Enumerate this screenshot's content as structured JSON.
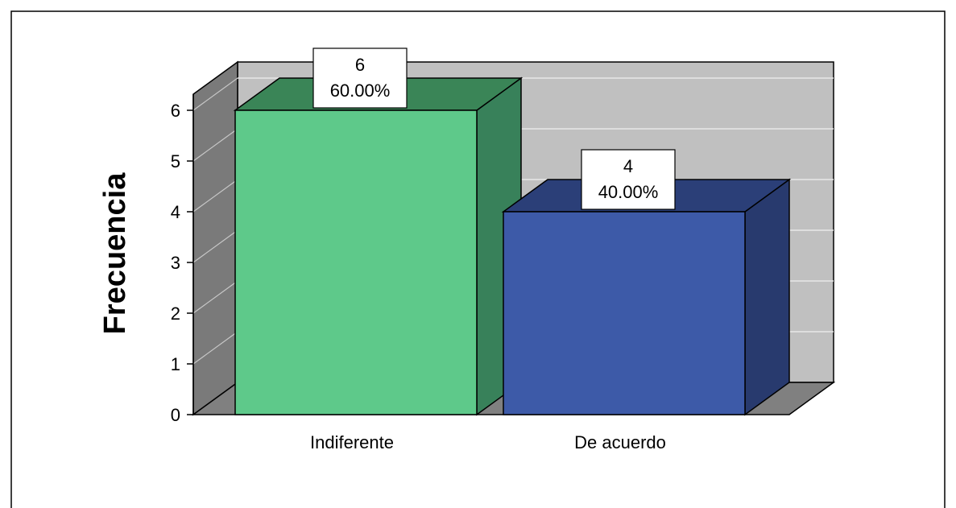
{
  "chart_data": {
    "type": "bar",
    "style": "3d",
    "categories": [
      "Indiferente",
      "De acuerdo"
    ],
    "values": [
      6,
      4
    ],
    "percent_labels": [
      "60.00%",
      "40.00%"
    ],
    "value_labels": [
      "6",
      "4"
    ],
    "title": "",
    "xlabel": "",
    "ylabel": "Frecuencia",
    "ylim": [
      0,
      6
    ],
    "yticks": [
      "0",
      "1",
      "2",
      "3",
      "4",
      "5",
      "6"
    ],
    "grid": true,
    "legend": "none",
    "colors": {
      "bars": [
        "#5ec98a",
        "#3d5aa8"
      ],
      "bar_sides": [
        "#38815a",
        "#283a6e"
      ],
      "bar_tops": [
        "#3a8557",
        "#2b3f78"
      ],
      "back_wall": "#c0c0c0",
      "side_wall": "#7a7a7a",
      "floor": "#808080"
    }
  }
}
